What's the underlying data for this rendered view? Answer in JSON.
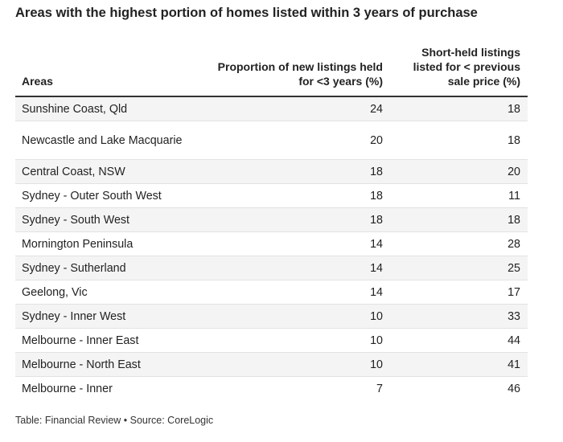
{
  "title": "Areas with the highest portion of homes listed within 3 years of purchase",
  "footer": "Table: Financial Review • Source: CoreLogic",
  "chart_data": {
    "type": "table",
    "columns": [
      "Areas",
      "Proportion of new listings held for <3 years (%)",
      "Short-held listings listed for < previous sale price (%)"
    ],
    "rows": [
      [
        "Sunshine Coast, Qld",
        24,
        18
      ],
      [
        "Newcastle and Lake Macquarie",
        20,
        18
      ],
      [
        "Central Coast, NSW",
        18,
        20
      ],
      [
        "Sydney - Outer South West",
        18,
        11
      ],
      [
        "Sydney - South West",
        18,
        18
      ],
      [
        "Mornington Peninsula",
        14,
        28
      ],
      [
        "Sydney - Sutherland",
        14,
        25
      ],
      [
        "Geelong, Vic",
        14,
        17
      ],
      [
        "Sydney - Inner West",
        10,
        33
      ],
      [
        "Melbourne - Inner East",
        10,
        44
      ],
      [
        "Melbourne - North East",
        10,
        41
      ],
      [
        "Melbourne - Inner",
        7,
        46
      ]
    ]
  }
}
